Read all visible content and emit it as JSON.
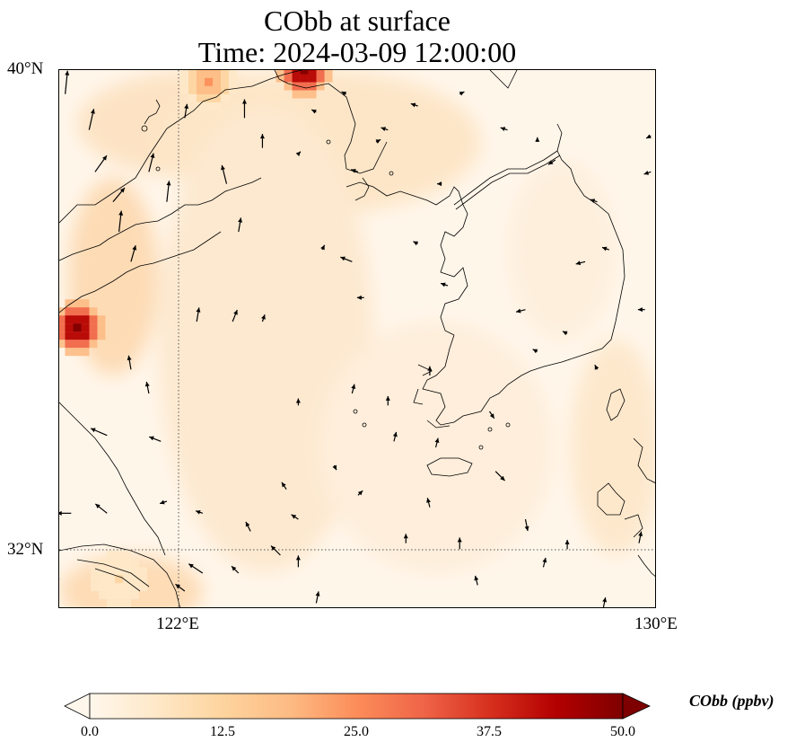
{
  "title_line1": "CObb at surface",
  "title_line2": "Time: 2024-03-09 12:00:00",
  "map": {
    "lon_range": [
      120,
      130
    ],
    "lat_range": [
      31,
      40
    ],
    "lat_ticks": [
      {
        "value": 40,
        "label": "40°N"
      },
      {
        "value": 32,
        "label": "32°N"
      }
    ],
    "lon_ticks": [
      {
        "value": 122,
        "label": "122°E"
      },
      {
        "value": 130,
        "label": "130°E"
      }
    ],
    "gridlines": "dotted",
    "field_name": "CObb",
    "field_colormap": "OrRd",
    "background_color": "#fff6ea",
    "coastline_color": "#000000",
    "hotspots": [
      {
        "lon": 120.3,
        "lat": 35.7,
        "value": 48
      },
      {
        "lon": 124.1,
        "lat": 40.0,
        "value": 50
      },
      {
        "lon": 122.5,
        "lat": 39.8,
        "value": 22
      },
      {
        "lon": 121.0,
        "lat": 31.5,
        "value": 10
      }
    ],
    "wind_arrows": [
      {
        "lon": 120.1,
        "lat": 39.6,
        "u": 0.1,
        "v": 1.0
      },
      {
        "lon": 120.5,
        "lat": 39.0,
        "u": 0.2,
        "v": 0.9
      },
      {
        "lon": 120.6,
        "lat": 38.3,
        "u": 0.5,
        "v": 0.7
      },
      {
        "lon": 120.9,
        "lat": 37.8,
        "u": 0.5,
        "v": 0.6
      },
      {
        "lon": 121.5,
        "lat": 38.3,
        "u": 0.2,
        "v": 0.8
      },
      {
        "lon": 121.8,
        "lat": 37.8,
        "u": 0.1,
        "v": 0.9
      },
      {
        "lon": 122.8,
        "lat": 38.1,
        "u": -0.2,
        "v": 0.8
      },
      {
        "lon": 121.0,
        "lat": 37.3,
        "u": 0.1,
        "v": 0.9
      },
      {
        "lon": 121.2,
        "lat": 36.8,
        "u": 0.2,
        "v": 0.7
      },
      {
        "lon": 122.1,
        "lat": 39.2,
        "u": 0.1,
        "v": 0.6
      },
      {
        "lon": 123.1,
        "lat": 39.2,
        "u": 0.0,
        "v": 0.8
      },
      {
        "lon": 123.4,
        "lat": 38.7,
        "u": 0.0,
        "v": 0.6
      },
      {
        "lon": 123.0,
        "lat": 37.3,
        "u": 0.1,
        "v": 0.6
      },
      {
        "lon": 122.3,
        "lat": 35.8,
        "u": 0.1,
        "v": 0.6
      },
      {
        "lon": 122.9,
        "lat": 35.8,
        "u": 0.2,
        "v": 0.5
      },
      {
        "lon": 123.4,
        "lat": 35.8,
        "u": 0.1,
        "v": 0.3
      },
      {
        "lon": 121.2,
        "lat": 35.0,
        "u": -0.1,
        "v": 0.6
      },
      {
        "lon": 121.5,
        "lat": 34.6,
        "u": -0.1,
        "v": 0.5
      },
      {
        "lon": 121.7,
        "lat": 33.8,
        "u": -0.5,
        "v": 0.2
      },
      {
        "lon": 120.8,
        "lat": 33.9,
        "u": -0.7,
        "v": 0.3
      },
      {
        "lon": 121.8,
        "lat": 32.8,
        "u": -0.3,
        "v": -0.1
      },
      {
        "lon": 122.4,
        "lat": 32.6,
        "u": -0.3,
        "v": 0.1
      },
      {
        "lon": 123.2,
        "lat": 32.3,
        "u": -0.2,
        "v": 0.4
      },
      {
        "lon": 123.8,
        "lat": 33.0,
        "u": -0.2,
        "v": 0.3
      },
      {
        "lon": 124.0,
        "lat": 32.5,
        "u": -0.3,
        "v": 0.2
      },
      {
        "lon": 123.7,
        "lat": 31.9,
        "u": -0.4,
        "v": 0.4
      },
      {
        "lon": 120.8,
        "lat": 32.6,
        "u": -0.5,
        "v": 0.4
      },
      {
        "lon": 120.2,
        "lat": 32.6,
        "u": -0.6,
        "v": 0.0
      },
      {
        "lon": 120.0,
        "lat": 31.5,
        "u": -0.8,
        "v": 0.5
      },
      {
        "lon": 122.1,
        "lat": 31.3,
        "u": -0.4,
        "v": 0.3
      },
      {
        "lon": 122.4,
        "lat": 31.6,
        "u": -0.6,
        "v": 0.4
      },
      {
        "lon": 123.0,
        "lat": 31.6,
        "u": -0.3,
        "v": 0.3
      },
      {
        "lon": 124.0,
        "lat": 31.7,
        "u": 0.0,
        "v": 0.5
      },
      {
        "lon": 124.3,
        "lat": 31.1,
        "u": 0.1,
        "v": 0.5
      },
      {
        "lon": 125.8,
        "lat": 32.1,
        "u": 0.0,
        "v": 0.4
      },
      {
        "lon": 126.2,
        "lat": 32.7,
        "u": -0.1,
        "v": 0.4
      },
      {
        "lon": 126.7,
        "lat": 32.0,
        "u": 0.0,
        "v": 0.5
      },
      {
        "lon": 126.3,
        "lat": 33.7,
        "u": 0.1,
        "v": 0.4
      },
      {
        "lon": 127.3,
        "lat": 33.3,
        "u": 0.4,
        "v": -0.4
      },
      {
        "lon": 127.8,
        "lat": 32.5,
        "u": 0.1,
        "v": -0.5
      },
      {
        "lon": 127.0,
        "lat": 31.4,
        "u": -0.1,
        "v": 0.4
      },
      {
        "lon": 125.0,
        "lat": 32.9,
        "u": 0.2,
        "v": 0.2
      },
      {
        "lon": 125.6,
        "lat": 33.8,
        "u": 0.1,
        "v": 0.4
      },
      {
        "lon": 124.6,
        "lat": 33.4,
        "u": 0.1,
        "v": -0.2
      },
      {
        "lon": 124.0,
        "lat": 34.4,
        "u": 0.0,
        "v": 0.3
      },
      {
        "lon": 124.9,
        "lat": 34.6,
        "u": 0.1,
        "v": 0.4
      },
      {
        "lon": 125.5,
        "lat": 34.4,
        "u": 0.0,
        "v": 0.4
      },
      {
        "lon": 126.2,
        "lat": 34.9,
        "u": 0.0,
        "v": 0.4
      },
      {
        "lon": 127.2,
        "lat": 34.3,
        "u": 0.2,
        "v": -0.3
      },
      {
        "lon": 128.1,
        "lat": 31.7,
        "u": 0.1,
        "v": 0.4
      },
      {
        "lon": 128.5,
        "lat": 32.0,
        "u": 0.0,
        "v": 0.4
      },
      {
        "lon": 129.1,
        "lat": 31.0,
        "u": 0.1,
        "v": 0.5
      },
      {
        "lon": 129.7,
        "lat": 32.1,
        "u": 0.1,
        "v": 0.5
      },
      {
        "lon": 127.8,
        "lat": 36.0,
        "u": -0.4,
        "v": -0.1
      },
      {
        "lon": 128.0,
        "lat": 35.3,
        "u": -0.2,
        "v": 0.1
      },
      {
        "lon": 128.5,
        "lat": 35.6,
        "u": -0.2,
        "v": 0.1
      },
      {
        "lon": 129.0,
        "lat": 35.0,
        "u": -0.1,
        "v": 0.2
      },
      {
        "lon": 128.8,
        "lat": 36.8,
        "u": -0.4,
        "v": -0.1
      },
      {
        "lon": 129.2,
        "lat": 37.0,
        "u": -0.3,
        "v": 0.1
      },
      {
        "lon": 129.8,
        "lat": 36.0,
        "u": -0.3,
        "v": 0.0
      },
      {
        "lon": 129.9,
        "lat": 38.3,
        "u": -0.3,
        "v": -0.1
      },
      {
        "lon": 129.0,
        "lat": 37.8,
        "u": -0.3,
        "v": 0.1
      },
      {
        "lon": 128.3,
        "lat": 38.5,
        "u": -0.3,
        "v": -0.2
      },
      {
        "lon": 129.9,
        "lat": 38.9,
        "u": -0.2,
        "v": -0.1
      },
      {
        "lon": 128.0,
        "lat": 38.8,
        "u": 0.0,
        "v": 0.2
      },
      {
        "lon": 127.5,
        "lat": 39.0,
        "u": -0.3,
        "v": 0.1
      },
      {
        "lon": 126.0,
        "lat": 39.4,
        "u": -0.3,
        "v": 0.1
      },
      {
        "lon": 125.5,
        "lat": 39.0,
        "u": -0.3,
        "v": 0.1
      },
      {
        "lon": 125.0,
        "lat": 38.3,
        "u": -0.3,
        "v": 0.1
      },
      {
        "lon": 124.9,
        "lat": 36.8,
        "u": -0.5,
        "v": 0.2
      },
      {
        "lon": 125.1,
        "lat": 36.2,
        "u": -0.3,
        "v": 0.0
      },
      {
        "lon": 126.5,
        "lat": 36.4,
        "u": -0.3,
        "v": 0.1
      },
      {
        "lon": 126.0,
        "lat": 37.1,
        "u": -0.2,
        "v": 0.1
      },
      {
        "lon": 126.4,
        "lat": 38.1,
        "u": -0.2,
        "v": 0.0
      },
      {
        "lon": 124.8,
        "lat": 39.6,
        "u": -0.2,
        "v": 0.1
      },
      {
        "lon": 124.3,
        "lat": 39.3,
        "u": -0.2,
        "v": 0.1
      },
      {
        "lon": 124.0,
        "lat": 38.6,
        "u": 0.1,
        "v": 0.1
      },
      {
        "lon": 124.4,
        "lat": 37.0,
        "u": 0.1,
        "v": 0.2
      },
      {
        "lon": 125.3,
        "lat": 38.8,
        "u": 0.2,
        "v": 0.1
      },
      {
        "lon": 126.7,
        "lat": 39.6,
        "u": 0.2,
        "v": 0.1
      }
    ]
  },
  "colorbar": {
    "label": "CObb (ppbv)",
    "min": 0,
    "max": 50,
    "ticks": [
      "0.0",
      "12.5",
      "25.0",
      "37.5",
      "50.0"
    ],
    "extend": "both"
  }
}
